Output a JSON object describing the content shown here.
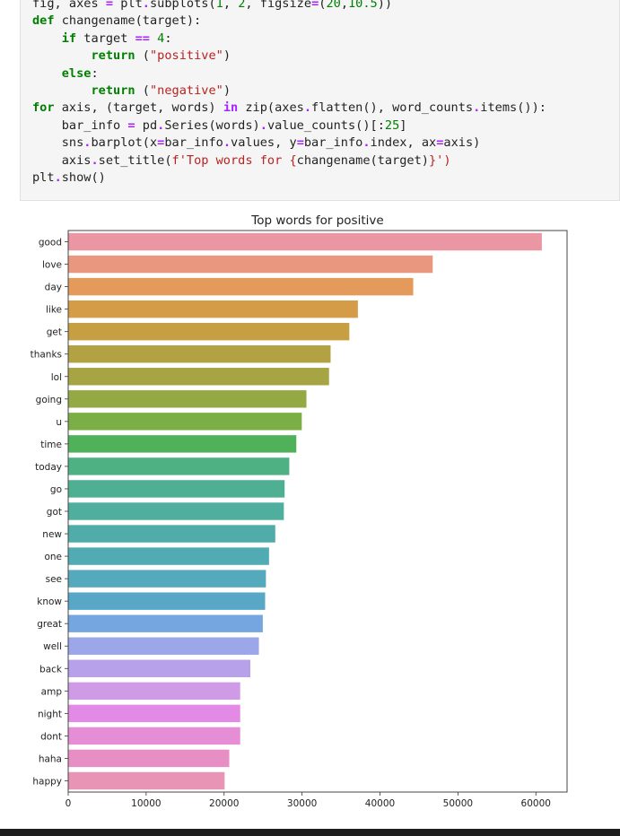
{
  "code_cell": {
    "lines": [
      [
        [
          "fig, axes ",
          ""
        ],
        [
          "=",
          "op"
        ],
        [
          " plt",
          ""
        ],
        [
          ".",
          "op"
        ],
        [
          "subplots(",
          ""
        ],
        [
          "1",
          "num"
        ],
        [
          ", ",
          ""
        ],
        [
          "2",
          "num"
        ],
        [
          ", figsize",
          ""
        ],
        [
          "=",
          "op"
        ],
        [
          "(",
          ""
        ],
        [
          "20",
          "num"
        ],
        [
          ",",
          ""
        ],
        [
          "10.5",
          "num"
        ],
        [
          "))",
          ""
        ]
      ],
      [
        [
          "def",
          "kw"
        ],
        [
          " changename(target):",
          ""
        ]
      ],
      [
        [
          "    ",
          ""
        ],
        [
          "if",
          "kw"
        ],
        [
          " target ",
          ""
        ],
        [
          "==",
          "op"
        ],
        [
          " ",
          ""
        ],
        [
          "4",
          "num"
        ],
        [
          ":",
          ""
        ]
      ],
      [
        [
          "        ",
          ""
        ],
        [
          "return",
          "kw"
        ],
        [
          " (",
          ""
        ],
        [
          "\"positive\"",
          "str"
        ],
        [
          ")",
          ""
        ]
      ],
      [
        [
          "    ",
          ""
        ],
        [
          "else",
          "kw"
        ],
        [
          ":",
          ""
        ]
      ],
      [
        [
          "        ",
          ""
        ],
        [
          "return",
          "kw"
        ],
        [
          " (",
          ""
        ],
        [
          "\"negative\"",
          "str"
        ],
        [
          ")",
          ""
        ]
      ],
      [
        [
          "for",
          "kw"
        ],
        [
          " axis, (target, words) ",
          ""
        ],
        [
          "in",
          "op"
        ],
        [
          " zip(axes",
          ""
        ],
        [
          ".",
          "op"
        ],
        [
          "flatten(), word_counts",
          ""
        ],
        [
          ".",
          "op"
        ],
        [
          "items()):",
          ""
        ]
      ],
      [
        [
          "    bar_info ",
          ""
        ],
        [
          "=",
          "op"
        ],
        [
          " pd",
          ""
        ],
        [
          ".",
          "op"
        ],
        [
          "Series(words)",
          ""
        ],
        [
          ".",
          "op"
        ],
        [
          "value_counts()[:",
          ""
        ],
        [
          "25",
          "num"
        ],
        [
          "]",
          ""
        ]
      ],
      [
        [
          "    sns",
          ""
        ],
        [
          ".",
          "op"
        ],
        [
          "barplot(x",
          ""
        ],
        [
          "=",
          "op"
        ],
        [
          "bar_info",
          ""
        ],
        [
          ".",
          "op"
        ],
        [
          "values, y",
          ""
        ],
        [
          "=",
          "op"
        ],
        [
          "bar_info",
          ""
        ],
        [
          ".",
          "op"
        ],
        [
          "index, ax",
          ""
        ],
        [
          "=",
          "op"
        ],
        [
          "axis)",
          ""
        ]
      ],
      [
        [
          "    axis",
          ""
        ],
        [
          ".",
          "op"
        ],
        [
          "set_title(",
          ""
        ],
        [
          "f'Top words for ",
          "str"
        ],
        [
          "{",
          "str"
        ],
        [
          "changename(target)",
          ""
        ],
        [
          "}",
          "str"
        ],
        [
          "')",
          "str"
        ]
      ],
      [
        [
          "plt",
          ""
        ],
        [
          ".",
          "op"
        ],
        [
          "show()",
          ""
        ]
      ]
    ]
  },
  "chart_data": {
    "type": "bar",
    "orientation": "horizontal",
    "title": "Top words for positive",
    "xlabel": "",
    "ylabel": "",
    "xlim": [
      0,
      64000
    ],
    "xticks": [
      0,
      10000,
      20000,
      30000,
      40000,
      50000,
      60000
    ],
    "xtick_labels": [
      "0",
      "10000",
      "20000",
      "30000",
      "40000",
      "50000",
      "60000"
    ],
    "grid": false,
    "categories": [
      "good",
      "love",
      "day",
      "like",
      "get",
      "thanks",
      "lol",
      "going",
      "u",
      "time",
      "today",
      "go",
      "got",
      "new",
      "one",
      "see",
      "know",
      "great",
      "well",
      "back",
      "amp",
      "night",
      "dont",
      "haha",
      "happy"
    ],
    "values": [
      60800,
      46800,
      44300,
      37200,
      36100,
      33700,
      33500,
      30600,
      30000,
      29300,
      28400,
      27800,
      27700,
      26600,
      25800,
      25400,
      25300,
      25000,
      24500,
      23400,
      22100,
      22100,
      22100,
      20700,
      20100
    ],
    "colors": [
      "#ea96a3",
      "#e9977f",
      "#e39a5a",
      "#d49c47",
      "#c59f42",
      "#b3a244",
      "#a7a444",
      "#94a944",
      "#7cae46",
      "#4fb25a",
      "#4db183",
      "#4eaf92",
      "#4fae9d",
      "#4faca8",
      "#51abb2",
      "#54a9bc",
      "#58a7c7",
      "#76a6df",
      "#9ba7e9",
      "#b6a1ea",
      "#cf9be7",
      "#e38ae6",
      "#e58ed6",
      "#e78fc4",
      "#e894b4"
    ]
  }
}
